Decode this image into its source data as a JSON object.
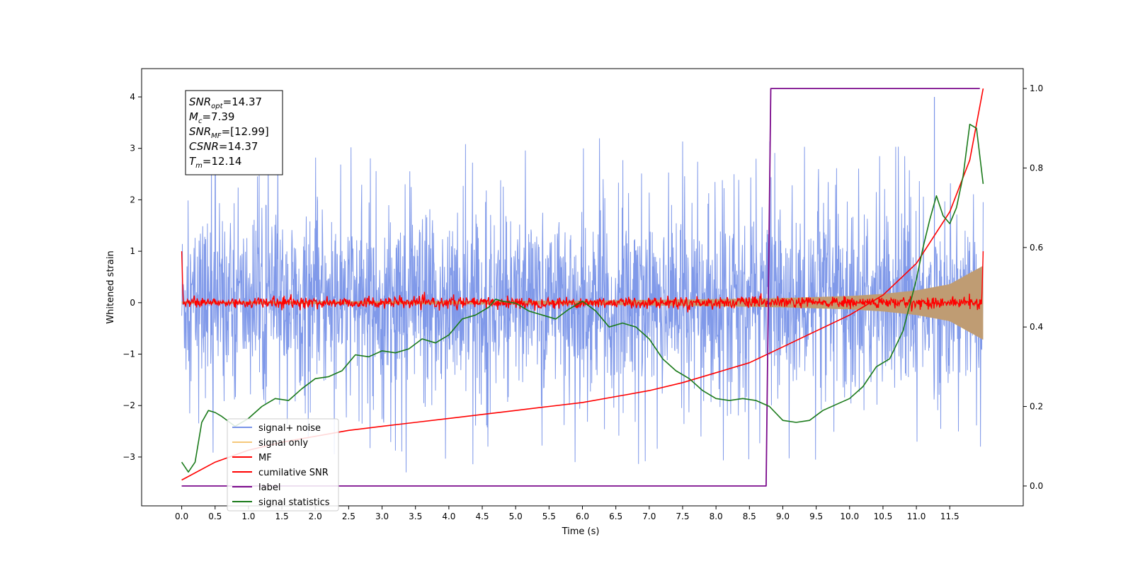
{
  "chart_data": {
    "type": "line",
    "xlabel": "Time (s)",
    "ylabel": "Whitened strain",
    "xlim": [
      -0.6,
      12.6
    ],
    "ylim": [
      -3.95,
      4.55
    ],
    "y2lim": [
      -0.05,
      1.05
    ],
    "x_ticks": [
      "0.0",
      "0.5",
      "1.0",
      "1.5",
      "2.0",
      "2.5",
      "3.0",
      "3.5",
      "4.0",
      "4.5",
      "5.0",
      "5.5",
      "6.0",
      "6.5",
      "7.0",
      "7.5",
      "8.0",
      "8.5",
      "9.0",
      "9.5",
      "10.0",
      "10.5",
      "11.0",
      "11.5"
    ],
    "y_ticks": [
      "4",
      "3",
      "2",
      "1",
      "0",
      "−1",
      "−2",
      "−3"
    ],
    "y2_ticks": [
      "1.0",
      "0.8",
      "0.6",
      "0.4",
      "0.2",
      "0.0"
    ],
    "stats_box": {
      "line1": {
        "main": "SNR",
        "sub": "opt",
        "value": "=14.37"
      },
      "line2": {
        "main": "M",
        "sub": "c",
        "value": "=7.39"
      },
      "line3": {
        "main": "SNR",
        "sub": "MF",
        "value": "=[12.99]"
      },
      "line4": {
        "main": "CSNR",
        "sub": "",
        "value": "=14.37"
      },
      "line5": {
        "main": "T",
        "sub": "m",
        "value": "=12.14"
      }
    },
    "series": [
      {
        "name": "signal+ noise",
        "color": "#7994e8",
        "envelope": {
          "t": [
            0.0,
            12.0
          ],
          "half_width": [
            1.6,
            1.6
          ],
          "peaks": [
            2.6,
            3.2,
            2.9,
            3.3,
            2.8,
            3.2,
            3.0,
            3.3,
            2.9,
            3.2,
            4.0,
            3.4
          ]
        }
      },
      {
        "name": "signal only",
        "color": "#f5c87a",
        "envelope": {
          "t": [
            0.0,
            6.0,
            8.0,
            9.0,
            10.0,
            10.5,
            11.0,
            11.5,
            12.0
          ],
          "half_width": [
            0.02,
            0.04,
            0.07,
            0.09,
            0.13,
            0.17,
            0.24,
            0.36,
            0.72
          ]
        }
      },
      {
        "name": "MF",
        "color": "#ff0000"
      },
      {
        "name": "cumilative SNR",
        "color": "#ff0000",
        "axis": "right",
        "x": [
          0.0,
          0.5,
          1.0,
          1.5,
          2.0,
          2.5,
          3.0,
          3.5,
          4.0,
          4.5,
          5.0,
          5.5,
          6.0,
          6.5,
          7.0,
          7.5,
          8.0,
          8.5,
          9.0,
          9.5,
          10.0,
          10.5,
          11.0,
          11.5,
          11.8,
          12.0
        ],
        "y": [
          0.015,
          0.06,
          0.09,
          0.11,
          0.125,
          0.14,
          0.15,
          0.16,
          0.17,
          0.18,
          0.19,
          0.2,
          0.21,
          0.225,
          0.24,
          0.26,
          0.285,
          0.31,
          0.35,
          0.39,
          0.43,
          0.48,
          0.56,
          0.69,
          0.82,
          1.0
        ]
      },
      {
        "name": "label",
        "color": "#7b0a8c",
        "axis": "right",
        "x": [
          0.0,
          8.75,
          8.82,
          11.95
        ],
        "y": [
          0.0,
          0.0,
          1.0,
          1.0
        ]
      },
      {
        "name": "signal statistics",
        "color": "#1a7a1a",
        "axis": "right",
        "x": [
          0.0,
          0.1,
          0.2,
          0.3,
          0.4,
          0.5,
          0.6,
          0.8,
          1.0,
          1.2,
          1.4,
          1.6,
          1.8,
          2.0,
          2.2,
          2.4,
          2.6,
          2.8,
          3.0,
          3.2,
          3.4,
          3.6,
          3.8,
          4.0,
          4.2,
          4.4,
          4.6,
          4.7,
          4.8,
          5.0,
          5.2,
          5.4,
          5.6,
          5.8,
          6.0,
          6.2,
          6.4,
          6.6,
          6.8,
          7.0,
          7.2,
          7.4,
          7.6,
          7.8,
          8.0,
          8.2,
          8.4,
          8.6,
          8.8,
          9.0,
          9.2,
          9.4,
          9.6,
          9.8,
          10.0,
          10.2,
          10.4,
          10.6,
          10.8,
          11.0,
          11.1,
          11.2,
          11.3,
          11.4,
          11.5,
          11.6,
          11.7,
          11.8,
          11.9,
          12.0
        ],
        "y": [
          0.06,
          0.035,
          0.06,
          0.16,
          0.19,
          0.185,
          0.175,
          0.15,
          0.17,
          0.2,
          0.22,
          0.215,
          0.245,
          0.27,
          0.275,
          0.29,
          0.33,
          0.325,
          0.34,
          0.335,
          0.345,
          0.37,
          0.36,
          0.38,
          0.42,
          0.43,
          0.45,
          0.47,
          0.465,
          0.46,
          0.44,
          0.43,
          0.42,
          0.445,
          0.465,
          0.44,
          0.4,
          0.41,
          0.4,
          0.37,
          0.32,
          0.29,
          0.27,
          0.24,
          0.22,
          0.215,
          0.22,
          0.215,
          0.2,
          0.165,
          0.16,
          0.165,
          0.19,
          0.205,
          0.22,
          0.25,
          0.3,
          0.32,
          0.39,
          0.52,
          0.6,
          0.67,
          0.73,
          0.68,
          0.66,
          0.7,
          0.78,
          0.91,
          0.9,
          0.76
        ]
      }
    ],
    "legend": {
      "placement": "lower-left",
      "entries": [
        "signal+ noise",
        "signal only",
        "MF",
        "cumilative SNR",
        "label",
        "signal statistics"
      ]
    }
  }
}
